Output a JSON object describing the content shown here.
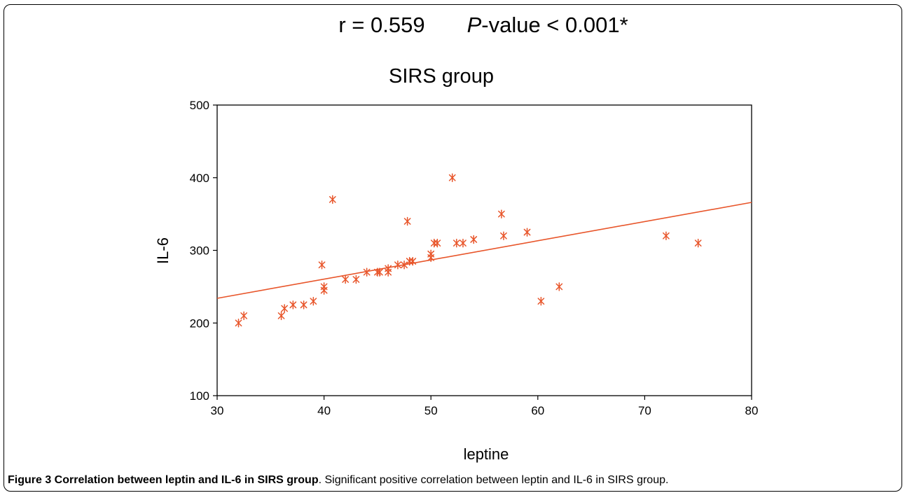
{
  "stats_line": {
    "r_text": "r = 0.559",
    "p_italic": "P",
    "p_rest": "-value < 0.001*"
  },
  "chart_data": {
    "type": "scatter",
    "title": "SIRS group",
    "xlabel": "leptine",
    "ylabel": "IL-6",
    "xlim": [
      30,
      80
    ],
    "ylim": [
      100,
      500
    ],
    "xticks": [
      "30",
      "40",
      "50",
      "60",
      "70",
      "80"
    ],
    "yticks": [
      "100",
      "200",
      "300",
      "400",
      "500"
    ],
    "grid": false,
    "marker": "asterisk",
    "color": "#e8552a",
    "x": [
      32,
      32.5,
      36,
      36.3,
      37.1,
      38.1,
      39,
      39.8,
      40,
      40,
      40.8,
      42,
      43,
      44,
      45,
      45.2,
      46,
      46,
      46.9,
      47.5,
      47.8,
      48,
      48.3,
      50,
      50,
      50.3,
      50.6,
      52,
      52.4,
      53,
      54,
      56.6,
      56.8,
      59,
      60.3,
      62,
      72,
      75
    ],
    "y": [
      200,
      210,
      210,
      220,
      225,
      225,
      230,
      280,
      245,
      250,
      370,
      260,
      260,
      270,
      270,
      270,
      270,
      275,
      280,
      280,
      340,
      285,
      285,
      290,
      295,
      310,
      310,
      400,
      310,
      310,
      315,
      350,
      320,
      325,
      230,
      250,
      320,
      310
    ],
    "trendline": {
      "x": [
        30,
        80
      ],
      "y": [
        234,
        366
      ]
    }
  },
  "caption": {
    "bold": "Figure 3 Correlation between leptin and IL-6 in SIRS group",
    "rest": ". Significant positive correlation between leptin and IL-6 in SIRS group."
  }
}
